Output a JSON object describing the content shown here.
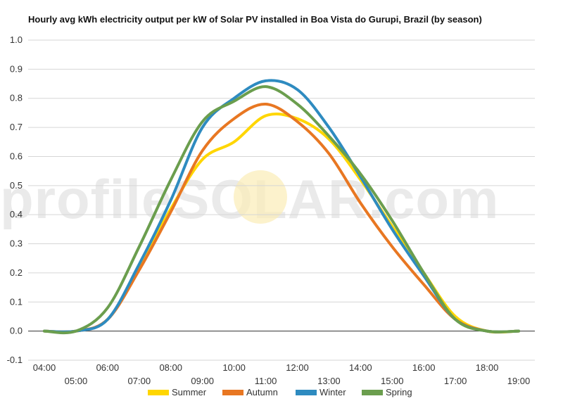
{
  "chart_data": {
    "type": "line",
    "title": "Hourly avg kWh electricity output per kW of Solar PV installed in Boa Vista do Gurupi, Brazil (by season)",
    "xlabel": "",
    "ylabel": "",
    "x_ticks": [
      "04:00",
      "05:00",
      "06:00",
      "07:00",
      "08:00",
      "09:00",
      "10:00",
      "11:00",
      "12:00",
      "13:00",
      "14:00",
      "15:00",
      "16:00",
      "17:00",
      "18:00",
      "19:00"
    ],
    "x": [
      4,
      5,
      6,
      7,
      8,
      9,
      10,
      11,
      12,
      13,
      14,
      15,
      16,
      17,
      18,
      19
    ],
    "ylim": [
      -0.1,
      1.0
    ],
    "y_ticks": [
      "-0.1",
      "0.0",
      "0.1",
      "0.2",
      "0.3",
      "0.4",
      "0.5",
      "0.6",
      "0.7",
      "0.8",
      "0.9",
      "1.0"
    ],
    "grid": true,
    "legend_position": "bottom",
    "series": [
      {
        "name": "Summer",
        "color": "#ffd600",
        "values": [
          0.0,
          0.0,
          0.04,
          0.22,
          0.42,
          0.59,
          0.65,
          0.74,
          0.73,
          0.66,
          0.52,
          0.36,
          0.2,
          0.05,
          0.0,
          0.0
        ]
      },
      {
        "name": "Autumn",
        "color": "#e87722",
        "values": [
          0.0,
          0.0,
          0.04,
          0.21,
          0.41,
          0.62,
          0.73,
          0.78,
          0.72,
          0.61,
          0.44,
          0.29,
          0.16,
          0.04,
          0.0,
          0.0
        ]
      },
      {
        "name": "Winter",
        "color": "#2e8bc0",
        "values": [
          0.0,
          0.0,
          0.04,
          0.23,
          0.45,
          0.7,
          0.8,
          0.86,
          0.83,
          0.7,
          0.53,
          0.35,
          0.19,
          0.04,
          0.0,
          0.0
        ]
      },
      {
        "name": "Spring",
        "color": "#6b9e4e",
        "values": [
          0.0,
          0.0,
          0.08,
          0.29,
          0.52,
          0.72,
          0.79,
          0.84,
          0.78,
          0.67,
          0.54,
          0.38,
          0.2,
          0.04,
          0.0,
          0.0
        ]
      }
    ]
  },
  "watermark": "profileSOLAR.com"
}
